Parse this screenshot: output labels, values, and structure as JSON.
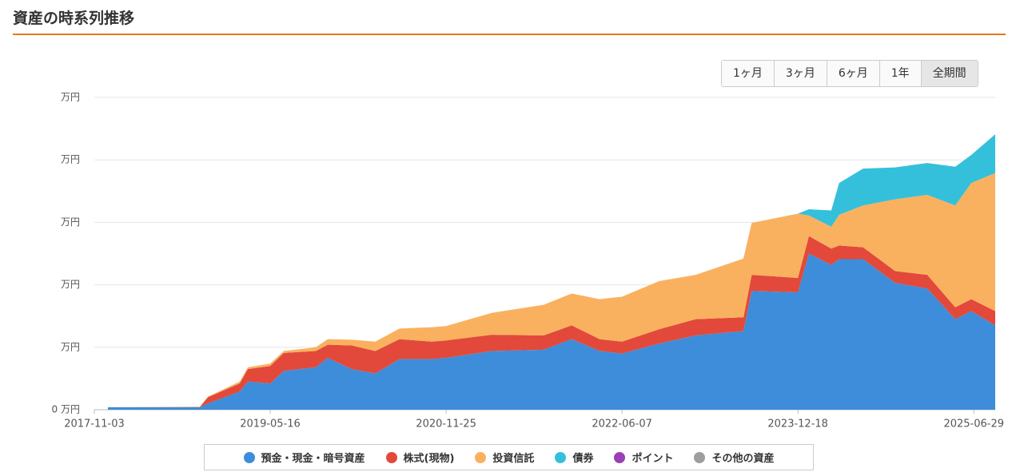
{
  "header": {
    "title": "資産の時系列推移"
  },
  "range_buttons": {
    "labels": [
      "1ヶ月",
      "3ヶ月",
      "6ヶ月",
      "1年",
      "全期間"
    ],
    "selected": "全期間"
  },
  "chart_data": {
    "type": "stacked-area",
    "x": [
      "2017-12-16",
      "2018-10-04",
      "2018-10-30",
      "2019-02-08",
      "2019-03-06",
      "2019-05-16",
      "2019-06-28",
      "2019-10-08",
      "2019-11-15",
      "2020-01-30",
      "2020-04-14",
      "2020-06-30",
      "2020-10-10",
      "2020-11-25",
      "2021-04-19",
      "2021-10-01",
      "2021-12-29",
      "2022-03-28",
      "2022-06-07",
      "2022-10-04",
      "2023-01-27",
      "2023-06-28",
      "2023-07-24",
      "2023-12-18",
      "2024-01-22",
      "2024-04-02",
      "2024-04-27",
      "2024-07-12",
      "2024-10-22",
      "2025-02-01",
      "2025-05-01",
      "2025-06-21",
      "2025-09-05"
    ],
    "xlim": [
      "2017-11-03",
      "2025-09-05"
    ],
    "xticks": [
      "2017-11-03",
      "2019-05-16",
      "2020-11-25",
      "2022-06-07",
      "2023-12-18",
      "2025-06-29"
    ],
    "ylim": [
      0,
      5
    ],
    "yticks": [
      {
        "value": 0,
        "label": "0 万円"
      },
      {
        "value": 1,
        "label": "万円"
      },
      {
        "value": 2,
        "label": "万円"
      },
      {
        "value": 3,
        "label": "万円"
      },
      {
        "value": 4,
        "label": "万円"
      },
      {
        "value": 5,
        "label": "万円"
      }
    ],
    "grid": true,
    "series": [
      {
        "name": "預金・現金・暗号資産",
        "color": "#3d8ddb",
        "values": [
          0.04,
          0.04,
          0.1,
          0.29,
          0.45,
          0.42,
          0.62,
          0.68,
          0.83,
          0.65,
          0.58,
          0.81,
          0.81,
          0.83,
          0.94,
          0.96,
          1.13,
          0.94,
          0.9,
          1.06,
          1.19,
          1.26,
          1.9,
          1.88,
          2.5,
          2.32,
          2.41,
          2.41,
          2.03,
          1.94,
          1.45,
          1.58,
          1.35
        ]
      },
      {
        "name": "株式(現物)",
        "color": "#e2493b",
        "values": [
          0,
          0,
          0.1,
          0.13,
          0.2,
          0.28,
          0.29,
          0.26,
          0.21,
          0.38,
          0.36,
          0.32,
          0.28,
          0.28,
          0.26,
          0.23,
          0.22,
          0.19,
          0.19,
          0.23,
          0.26,
          0.22,
          0.26,
          0.23,
          0.28,
          0.26,
          0.22,
          0.19,
          0.19,
          0.22,
          0.19,
          0.19,
          0.23
        ]
      },
      {
        "name": "投資信託",
        "color": "#fab15f",
        "values": [
          0,
          0.01,
          0.01,
          0.03,
          0.03,
          0.04,
          0.03,
          0.06,
          0.09,
          0.09,
          0.15,
          0.17,
          0.23,
          0.23,
          0.35,
          0.49,
          0.51,
          0.64,
          0.72,
          0.77,
          0.71,
          0.94,
          0.83,
          1.03,
          0.33,
          0.35,
          0.49,
          0.67,
          1.15,
          1.28,
          1.63,
          1.86,
          2.21
        ]
      },
      {
        "name": "債券",
        "color": "#34c0da",
        "values": [
          0,
          0,
          0,
          0,
          0,
          0,
          0,
          0,
          0,
          0,
          0,
          0,
          0,
          0,
          0,
          0,
          0,
          0,
          0,
          0,
          0,
          0,
          0,
          0,
          0.1,
          0.26,
          0.51,
          0.59,
          0.51,
          0.51,
          0.62,
          0.45,
          0.62
        ]
      },
      {
        "name": "ポイント",
        "color": "#9b3fb6",
        "values": [
          0,
          0,
          0,
          0,
          0,
          0,
          0,
          0,
          0,
          0,
          0,
          0,
          0,
          0,
          0,
          0,
          0,
          0,
          0,
          0,
          0,
          0,
          0,
          0,
          0,
          0,
          0,
          0,
          0,
          0,
          0,
          0,
          0
        ]
      },
      {
        "name": "その他の資産",
        "color": "#9e9e9e",
        "values": [
          0,
          0,
          0,
          0,
          0,
          0,
          0,
          0,
          0,
          0,
          0,
          0,
          0,
          0,
          0,
          0,
          0,
          0,
          0,
          0,
          0,
          0,
          0,
          0,
          0,
          0,
          0,
          0,
          0,
          0,
          0,
          0,
          0
        ]
      }
    ]
  }
}
